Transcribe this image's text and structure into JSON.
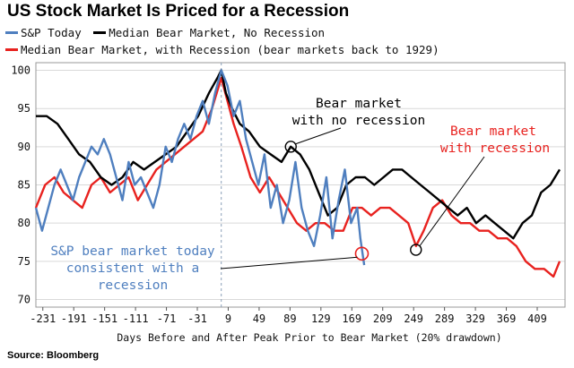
{
  "title": "US Stock Market Is Priced for a Recession",
  "legend": [
    {
      "label": "S&P Today",
      "color": "#4f7fbf"
    },
    {
      "label": "Median Bear Market, No Recession",
      "color": "#000000"
    },
    {
      "label": "Median Bear Market, with Recession (bear markets back to 1929)",
      "color": "#e8221f"
    }
  ],
  "source": "Source: Bloomberg",
  "chart_data": {
    "type": "line",
    "title": "US Stock Market Is Priced for a Recession",
    "xlabel": "Days Before and After Peak Prior to Bear Market (20% drawdown)",
    "ylabel": "",
    "xlim": [
      -240,
      445
    ],
    "ylim": [
      69,
      101
    ],
    "xticks": [
      -231,
      -191,
      -151,
      -111,
      -71,
      -31,
      9,
      49,
      89,
      129,
      169,
      209,
      249,
      289,
      329,
      369,
      409
    ],
    "yticks": [
      70,
      75,
      80,
      85,
      90,
      95,
      100
    ],
    "peak_marker_x": 0,
    "series": [
      {
        "name": "S&P Today",
        "color": "#4f7fbf",
        "x": [
          -240,
          -232,
          -224,
          -216,
          -208,
          -200,
          -192,
          -184,
          -176,
          -168,
          -160,
          -152,
          -144,
          -136,
          -128,
          -120,
          -112,
          -104,
          -96,
          -88,
          -80,
          -72,
          -64,
          -56,
          -48,
          -40,
          -32,
          -24,
          -16,
          -8,
          0,
          8,
          16,
          24,
          32,
          40,
          48,
          56,
          64,
          72,
          80,
          88,
          96,
          104,
          112,
          120,
          128,
          136,
          144,
          152,
          160,
          168,
          176,
          180,
          185
        ],
        "y": [
          82,
          79,
          82,
          85,
          87,
          85,
          83,
          86,
          88,
          90,
          89,
          91,
          89,
          86,
          83,
          88,
          85,
          86,
          84,
          82,
          85,
          90,
          88,
          91,
          93,
          91,
          94,
          96,
          93,
          97,
          100,
          98,
          94,
          96,
          91,
          88,
          85,
          89,
          82,
          85,
          80,
          83,
          88,
          82,
          79,
          77,
          81,
          86,
          78,
          83,
          87,
          80,
          82,
          78,
          74.5
        ]
      },
      {
        "name": "Median Bear Market, No Recession",
        "color": "#000000",
        "x": [
          -240,
          -226,
          -212,
          -198,
          -184,
          -170,
          -156,
          -142,
          -128,
          -114,
          -100,
          -86,
          -72,
          -58,
          -44,
          -30,
          -16,
          -5,
          0,
          6,
          14,
          24,
          36,
          50,
          64,
          78,
          90,
          102,
          114,
          126,
          138,
          150,
          162,
          174,
          186,
          198,
          210,
          222,
          234,
          246,
          258,
          270,
          282,
          294,
          306,
          318,
          330,
          342,
          354,
          366,
          378,
          390,
          402,
          414,
          426,
          438
        ],
        "y": [
          94,
          94,
          93,
          91,
          89,
          88,
          86,
          85,
          86,
          88,
          87,
          88,
          89,
          90,
          92,
          94,
          97,
          99,
          100,
          97,
          95,
          93,
          92,
          90,
          89,
          88,
          90,
          89,
          87,
          84,
          81,
          82,
          85,
          86,
          86,
          85,
          86,
          87,
          87,
          86,
          85,
          84,
          83,
          82,
          81,
          82,
          80,
          81,
          80,
          79,
          78,
          80,
          81,
          84,
          85,
          87
        ]
      },
      {
        "name": "Median Bear Market, with Recession",
        "color": "#e8221f",
        "x": [
          -240,
          -228,
          -216,
          -204,
          -192,
          -180,
          -168,
          -156,
          -144,
          -132,
          -120,
          -108,
          -96,
          -84,
          -72,
          -60,
          -48,
          -36,
          -24,
          -12,
          0,
          8,
          16,
          26,
          38,
          50,
          62,
          74,
          86,
          98,
          110,
          122,
          134,
          146,
          158,
          170,
          182,
          194,
          206,
          218,
          230,
          242,
          252,
          262,
          274,
          286,
          298,
          310,
          322,
          334,
          346,
          358,
          370,
          382,
          394,
          406,
          418,
          430,
          438
        ],
        "y": [
          82,
          85,
          86,
          84,
          83,
          82,
          85,
          86,
          84,
          85,
          86,
          83,
          85,
          87,
          88,
          89,
          90,
          91,
          92,
          95,
          99,
          96,
          93,
          90,
          86,
          84,
          86,
          84,
          82,
          80,
          79,
          80,
          80,
          79,
          79,
          82,
          82,
          81,
          82,
          82,
          81,
          80,
          77,
          79,
          82,
          83,
          81,
          80,
          80,
          79,
          79,
          78,
          78,
          77,
          75,
          74,
          74,
          73,
          75
        ]
      }
    ],
    "annotations": [
      {
        "label": "Bear market with no recession"
      },
      {
        "label": "Bear market with recession"
      },
      {
        "label": "S&P bear market today consistent with a recession"
      }
    ]
  }
}
